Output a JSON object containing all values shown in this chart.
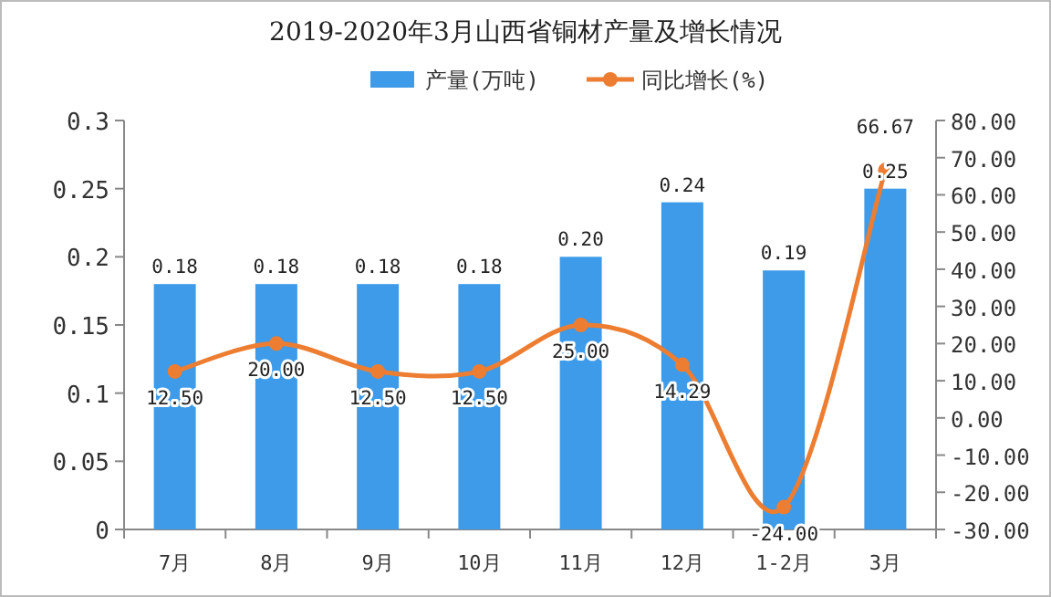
{
  "chart_data": {
    "type": "bar",
    "title": "2019-2020年3月山西省铜材产量及增长情况",
    "categories": [
      "7月",
      "8月",
      "9月",
      "10月",
      "11月",
      "12月",
      "1-2月",
      "3月"
    ],
    "series": [
      {
        "name": "产量(万吨)",
        "color": "#3d9be9",
        "values": [
          0.18,
          0.18,
          0.18,
          0.18,
          0.2,
          0.24,
          0.19,
          0.25
        ],
        "value_labels": [
          "0.18",
          "0.18",
          "0.18",
          "0.18",
          "0.20",
          "0.24",
          "0.19",
          "0.25"
        ]
      },
      {
        "name": "同比增长(%)",
        "type": "line",
        "axis": "y2",
        "color": "#ed7d31",
        "marker": "circle",
        "values": [
          12.5,
          20,
          12.5,
          12.5,
          25,
          14.29,
          -24,
          66.67
        ],
        "value_labels": [
          "12.50",
          "20.00",
          "12.50",
          "12.50",
          "25.00",
          "14.29",
          "-24.00",
          "66.67"
        ]
      }
    ],
    "ylim": [
      0,
      0.3
    ],
    "yticks": [
      0,
      0.05,
      0.1,
      0.15,
      0.2,
      0.25,
      0.3
    ],
    "y2lim": [
      -30,
      80
    ],
    "y2ticks": [
      {
        "value": -30,
        "label": "-30.00"
      },
      {
        "value": -20,
        "label": "-20.00"
      },
      {
        "value": -10,
        "label": "-10.00"
      },
      {
        "value": 0,
        "label": "0.00"
      },
      {
        "value": 10,
        "label": "10.00"
      },
      {
        "value": 20,
        "label": "20.00"
      },
      {
        "value": 30,
        "label": "30.00"
      },
      {
        "value": 40,
        "label": "40.00"
      },
      {
        "value": 50,
        "label": "50.00"
      },
      {
        "value": 60,
        "label": "60.00"
      },
      {
        "value": 70,
        "label": "70.00"
      },
      {
        "value": 80,
        "label": "80.00"
      }
    ],
    "legend": "top",
    "grid": false
  }
}
